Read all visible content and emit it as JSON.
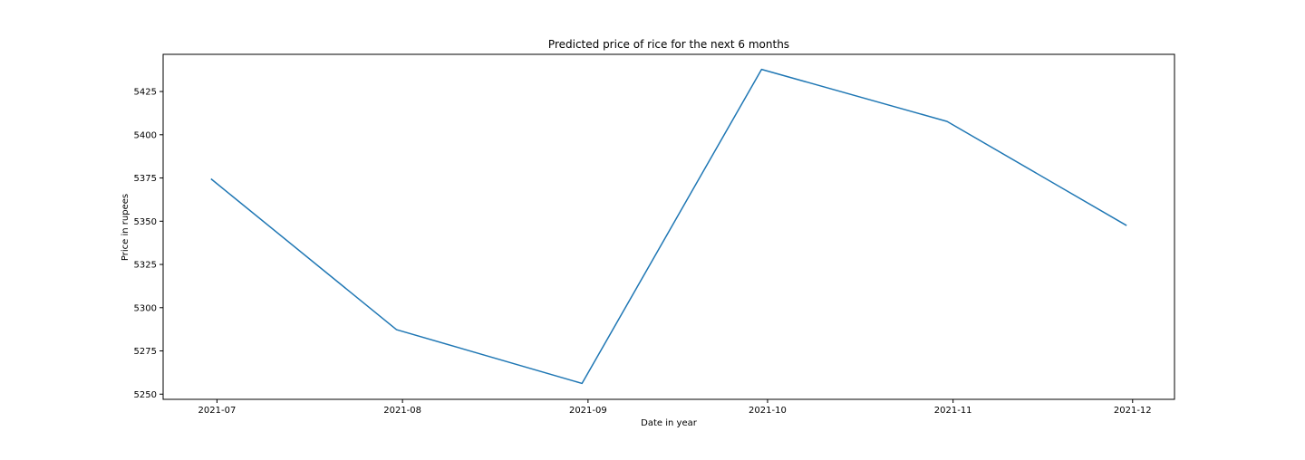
{
  "chart_data": {
    "type": "line",
    "title": "Predicted price of rice for the next 6 months",
    "xlabel": "Date in year",
    "ylabel": "Price in rupees",
    "x": [
      "2021-06-30",
      "2021-07-31",
      "2021-08-31",
      "2021-09-30",
      "2021-10-31",
      "2021-11-30"
    ],
    "x_tick_labels": [
      "2021-07",
      "2021-08",
      "2021-09",
      "2021-10",
      "2021-11",
      "2021-12"
    ],
    "x_tick_dates": [
      "2021-07-01",
      "2021-08-01",
      "2021-09-01",
      "2021-10-01",
      "2021-11-01",
      "2021-12-01"
    ],
    "xlim": [
      "2021-06-22",
      "2021-12-08"
    ],
    "series": [
      {
        "values": [
          5374.5,
          5287.3,
          5256.2,
          5437.8,
          5407.7,
          5347.5
        ],
        "color": "#1f77b4"
      }
    ],
    "y_ticks": [
      5250,
      5275,
      5300,
      5325,
      5350,
      5375,
      5400,
      5425
    ],
    "ylim": [
      5247,
      5446.5
    ],
    "grid": false,
    "legend": false
  }
}
